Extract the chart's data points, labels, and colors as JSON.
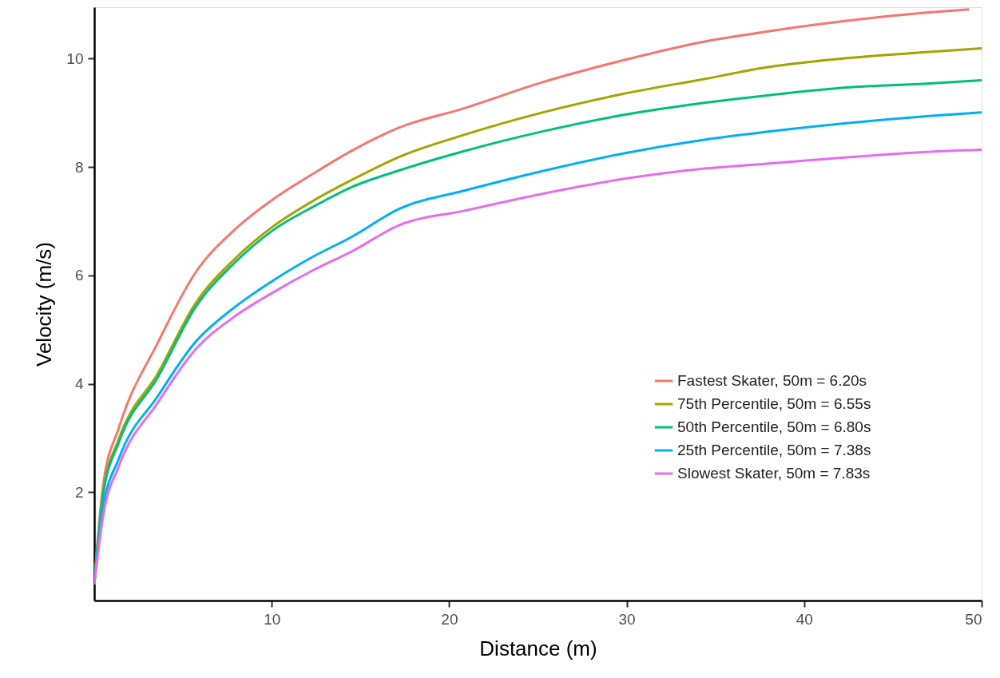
{
  "chart_data": {
    "type": "line",
    "xlabel": "Distance (m)",
    "ylabel": "Velocity (m/s)",
    "xlim": [
      0,
      50
    ],
    "ylim": [
      0,
      10.95
    ],
    "xticks": [
      10,
      20,
      30,
      40,
      50
    ],
    "yticks": [
      2,
      4,
      6,
      8,
      10
    ],
    "grid": false,
    "legend": "bottom right",
    "marker": "none",
    "line_style": "solid",
    "x": [
      0,
      0.5,
      1.4,
      3.6,
      5.7,
      7.9,
      10.1,
      12.3,
      14.5,
      17.2,
      20.8,
      25.3,
      29.8,
      34.3,
      37.9,
      42.4,
      46.9,
      50
    ],
    "series": [
      {
        "name": "Fastest Skater, 50m = 6.20s",
        "color": "#f8766d",
        "x": [
          0,
          0.5,
          1.4,
          3.6,
          5.7,
          7.9,
          10.1,
          12.3,
          14.5,
          17.2,
          20.8,
          25.3,
          29.8,
          34.3,
          37.9,
          42.4,
          46.9,
          49.3
        ],
        "values": [
          0.3,
          2.13,
          3.2,
          4.77,
          6.05,
          6.84,
          7.41,
          7.87,
          8.3,
          8.73,
          9.08,
          9.57,
          9.97,
          10.31,
          10.5,
          10.7,
          10.85,
          10.91
        ]
      },
      {
        "name": "75th Percentile, 50m = 6.55s",
        "color": "#a3a500",
        "values": [
          0.3,
          2.0,
          2.99,
          4.2,
          5.48,
          6.3,
          6.91,
          7.37,
          7.76,
          8.19,
          8.59,
          9.01,
          9.35,
          9.62,
          9.84,
          10.01,
          10.12,
          10.19
        ]
      },
      {
        "name": "50th Percentile, 50m = 6.80s",
        "color": "#00bf7d",
        "values": [
          0.3,
          1.95,
          2.93,
          4.13,
          5.41,
          6.23,
          6.84,
          7.26,
          7.63,
          7.94,
          8.29,
          8.66,
          8.96,
          9.18,
          9.32,
          9.47,
          9.54,
          9.6
        ]
      },
      {
        "name": "25th Percentile, 50m = 7.38s",
        "color": "#00b0f6",
        "values": [
          0.3,
          1.7,
          2.63,
          3.78,
          4.77,
          5.41,
          5.91,
          6.34,
          6.71,
          7.23,
          7.56,
          7.93,
          8.25,
          8.5,
          8.65,
          8.81,
          8.94,
          9.01
        ]
      },
      {
        "name": "Slowest Skater, 50m = 7.83s",
        "color": "#e76bf3",
        "values": [
          0.3,
          1.56,
          2.49,
          3.66,
          4.63,
          5.24,
          5.69,
          6.09,
          6.44,
          6.93,
          7.19,
          7.51,
          7.78,
          7.97,
          8.06,
          8.18,
          8.28,
          8.32
        ]
      }
    ]
  }
}
